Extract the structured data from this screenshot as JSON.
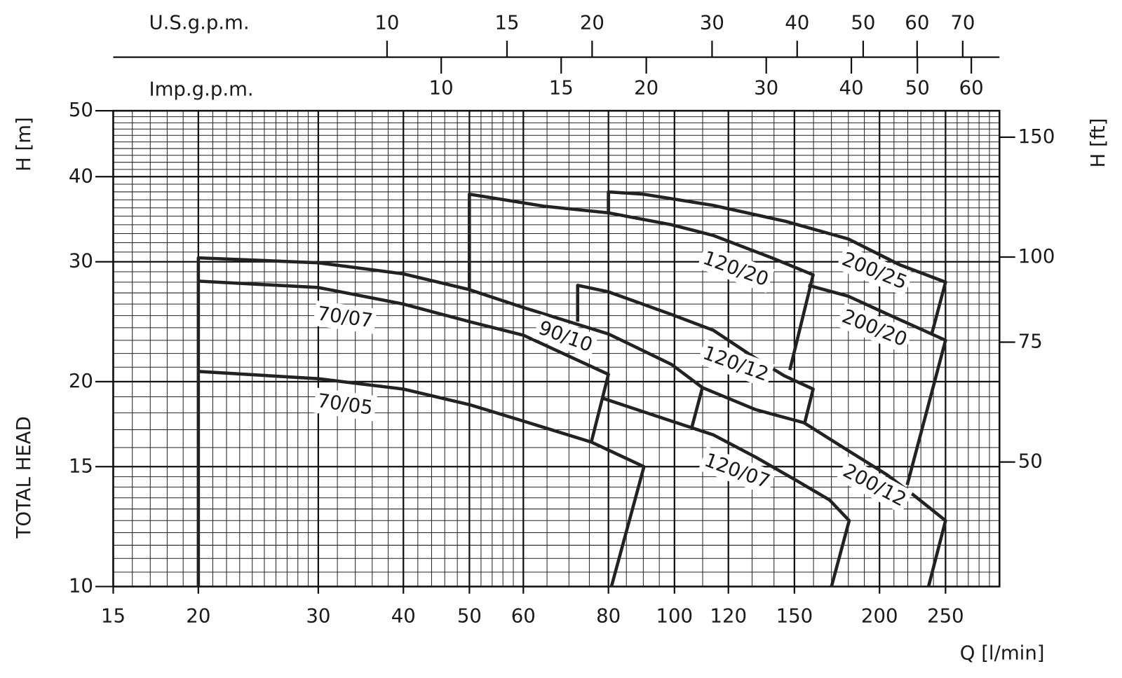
{
  "chart_data": {
    "type": "line",
    "x_label": "Q [l/min]",
    "y_label": "H [m]",
    "y_label_2": "TOTAL HEAD",
    "y2_label": "H [ft]",
    "x2_label": "U.S.g.p.m.",
    "x3_label": "Imp.g.p.m.",
    "xscale": "log",
    "yscale": "log",
    "grid": true,
    "xlim": [
      15,
      300
    ],
    "xticks": [
      15,
      20,
      30,
      40,
      50,
      60,
      80,
      100,
      120,
      150,
      200,
      250
    ],
    "xminor": [
      16,
      17,
      18,
      19,
      21,
      22,
      23,
      24,
      25,
      26,
      27,
      28,
      29,
      32,
      34,
      36,
      38,
      42,
      44,
      46,
      48,
      52,
      54,
      56,
      58,
      65,
      70,
      75,
      85,
      90,
      95,
      110,
      130,
      140,
      160,
      170,
      180,
      190,
      210,
      220,
      230,
      240,
      260,
      270,
      280,
      290
    ],
    "ylim": [
      10,
      50
    ],
    "yticks": [
      10,
      15,
      20,
      30,
      40,
      50
    ],
    "yminor": [
      10.5,
      11,
      11.5,
      12,
      12.5,
      13,
      13.5,
      14,
      14.5,
      16,
      17,
      18,
      19,
      21,
      22,
      23,
      24,
      25,
      26,
      27,
      28,
      29,
      31,
      32,
      33,
      34,
      35,
      36,
      37,
      38,
      39,
      41,
      42,
      43,
      44,
      45,
      46,
      47,
      48,
      49
    ],
    "y2lim": [
      32.81,
      164.04
    ],
    "y2ticks": [
      50,
      75,
      100,
      150
    ],
    "x2lim": [
      3.963,
      79.26
    ],
    "x2ticks": [
      10,
      15,
      20,
      30,
      40,
      50,
      60,
      70
    ],
    "x3lim": [
      3.3,
      65.99
    ],
    "x3ticks": [
      10,
      15,
      20,
      30,
      40,
      50,
      60
    ],
    "series": [
      {
        "name": "70/05",
        "color": "#222222",
        "x": [
          20,
          30,
          40,
          50,
          60,
          75.5,
          90.2,
          80.8
        ],
        "values": [
          20.7,
          20.2,
          19.5,
          18.5,
          17.5,
          16.3,
          15.0,
          10
        ]
      },
      {
        "name": "70/07",
        "color": "#222222",
        "x": [
          20,
          30,
          40,
          50,
          60,
          80,
          75.5
        ],
        "values": [
          28.1,
          27.5,
          26.0,
          24.5,
          23.4,
          20.5,
          16.3
        ]
      },
      {
        "name": "90/10",
        "color": "#222222",
        "x": [
          20,
          20,
          30,
          40,
          50,
          60,
          80,
          99,
          109.9,
          106
        ],
        "values": [
          10,
          30.4,
          29.9,
          28.8,
          27.3,
          25.7,
          23.5,
          21.2,
          19.6,
          17.1
        ]
      },
      {
        "name": "120/07",
        "color": "#222222",
        "x": [
          78.6,
          99,
          114.1,
          131.4,
          151.3,
          169,
          180.5,
          170
        ],
        "values": [
          18.9,
          17.5,
          16.7,
          15.5,
          14.3,
          13.4,
          12.5,
          10
        ]
      },
      {
        "name": "120/12",
        "color": "#222222",
        "x": [
          72.1,
          72.1,
          80,
          99,
          114,
          131,
          145,
          159.8,
          155.3
        ],
        "values": [
          24.5,
          27.7,
          27.1,
          25.1,
          23.8,
          21.7,
          20.4,
          19.5,
          17.4
        ]
      },
      {
        "name": "120/20",
        "color": "#222222",
        "x": [
          50,
          50,
          64.3,
          80,
          99,
          114,
          139,
          159.8,
          147.7
        ],
        "values": [
          27.3,
          37.7,
          36.2,
          35.4,
          34.0,
          32.8,
          30.4,
          28.7,
          20.8
        ]
      },
      {
        "name": "200/12",
        "color": "#222222",
        "x": [
          109.9,
          131.4,
          155,
          177,
          205,
          225,
          250,
          236
        ],
        "values": [
          19.6,
          18.2,
          17.4,
          16.0,
          14.6,
          13.6,
          12.5,
          10
        ]
      },
      {
        "name": "200/20",
        "color": "#222222",
        "x": [
          157.2,
          180,
          206,
          250,
          219.6
        ],
        "values": [
          27.7,
          26.7,
          25.1,
          23.0,
          14.1
        ]
      },
      {
        "name": "200/25",
        "color": "#222222",
        "x": [
          80,
          80,
          90,
          114,
          145.6,
          180,
          214,
          250,
          238.9
        ],
        "values": [
          35.4,
          38.0,
          37.7,
          36.3,
          34.4,
          32.4,
          29.7,
          28.0,
          23.6
        ]
      }
    ]
  }
}
